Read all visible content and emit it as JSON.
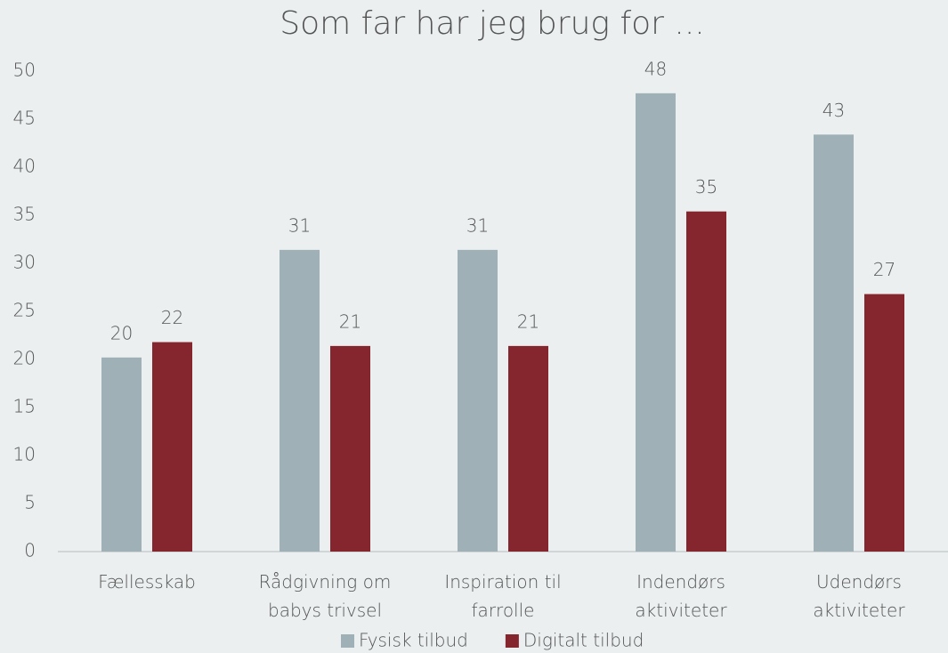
{
  "chart_data": {
    "type": "bar",
    "title": "Som far har jeg brug for ...",
    "categories": [
      "Fællesskab",
      "Rådgivning om babys trivsel",
      "Inspiration til farrolle",
      "Indendørs aktiviteter",
      "Udendørs aktiviteter"
    ],
    "series": [
      {
        "name": "Fysisk tilbud",
        "color": "#9fb1b7",
        "values": [
          20.2,
          31.4,
          31.4,
          47.7,
          43.4
        ],
        "value_labels": [
          "20",
          "31",
          "31",
          "48",
          "43"
        ]
      },
      {
        "name": "Digitalt tilbud",
        "color": "#85262e",
        "values": [
          21.8,
          21.4,
          21.4,
          35.4,
          26.8
        ],
        "value_labels": [
          "22",
          "21",
          "21",
          "35",
          "27"
        ]
      }
    ],
    "ylim": [
      0,
      50
    ],
    "yticks": [
      0,
      5,
      10,
      15,
      20,
      25,
      30,
      35,
      40,
      45,
      50
    ],
    "grid": false,
    "legend": "bottom"
  }
}
